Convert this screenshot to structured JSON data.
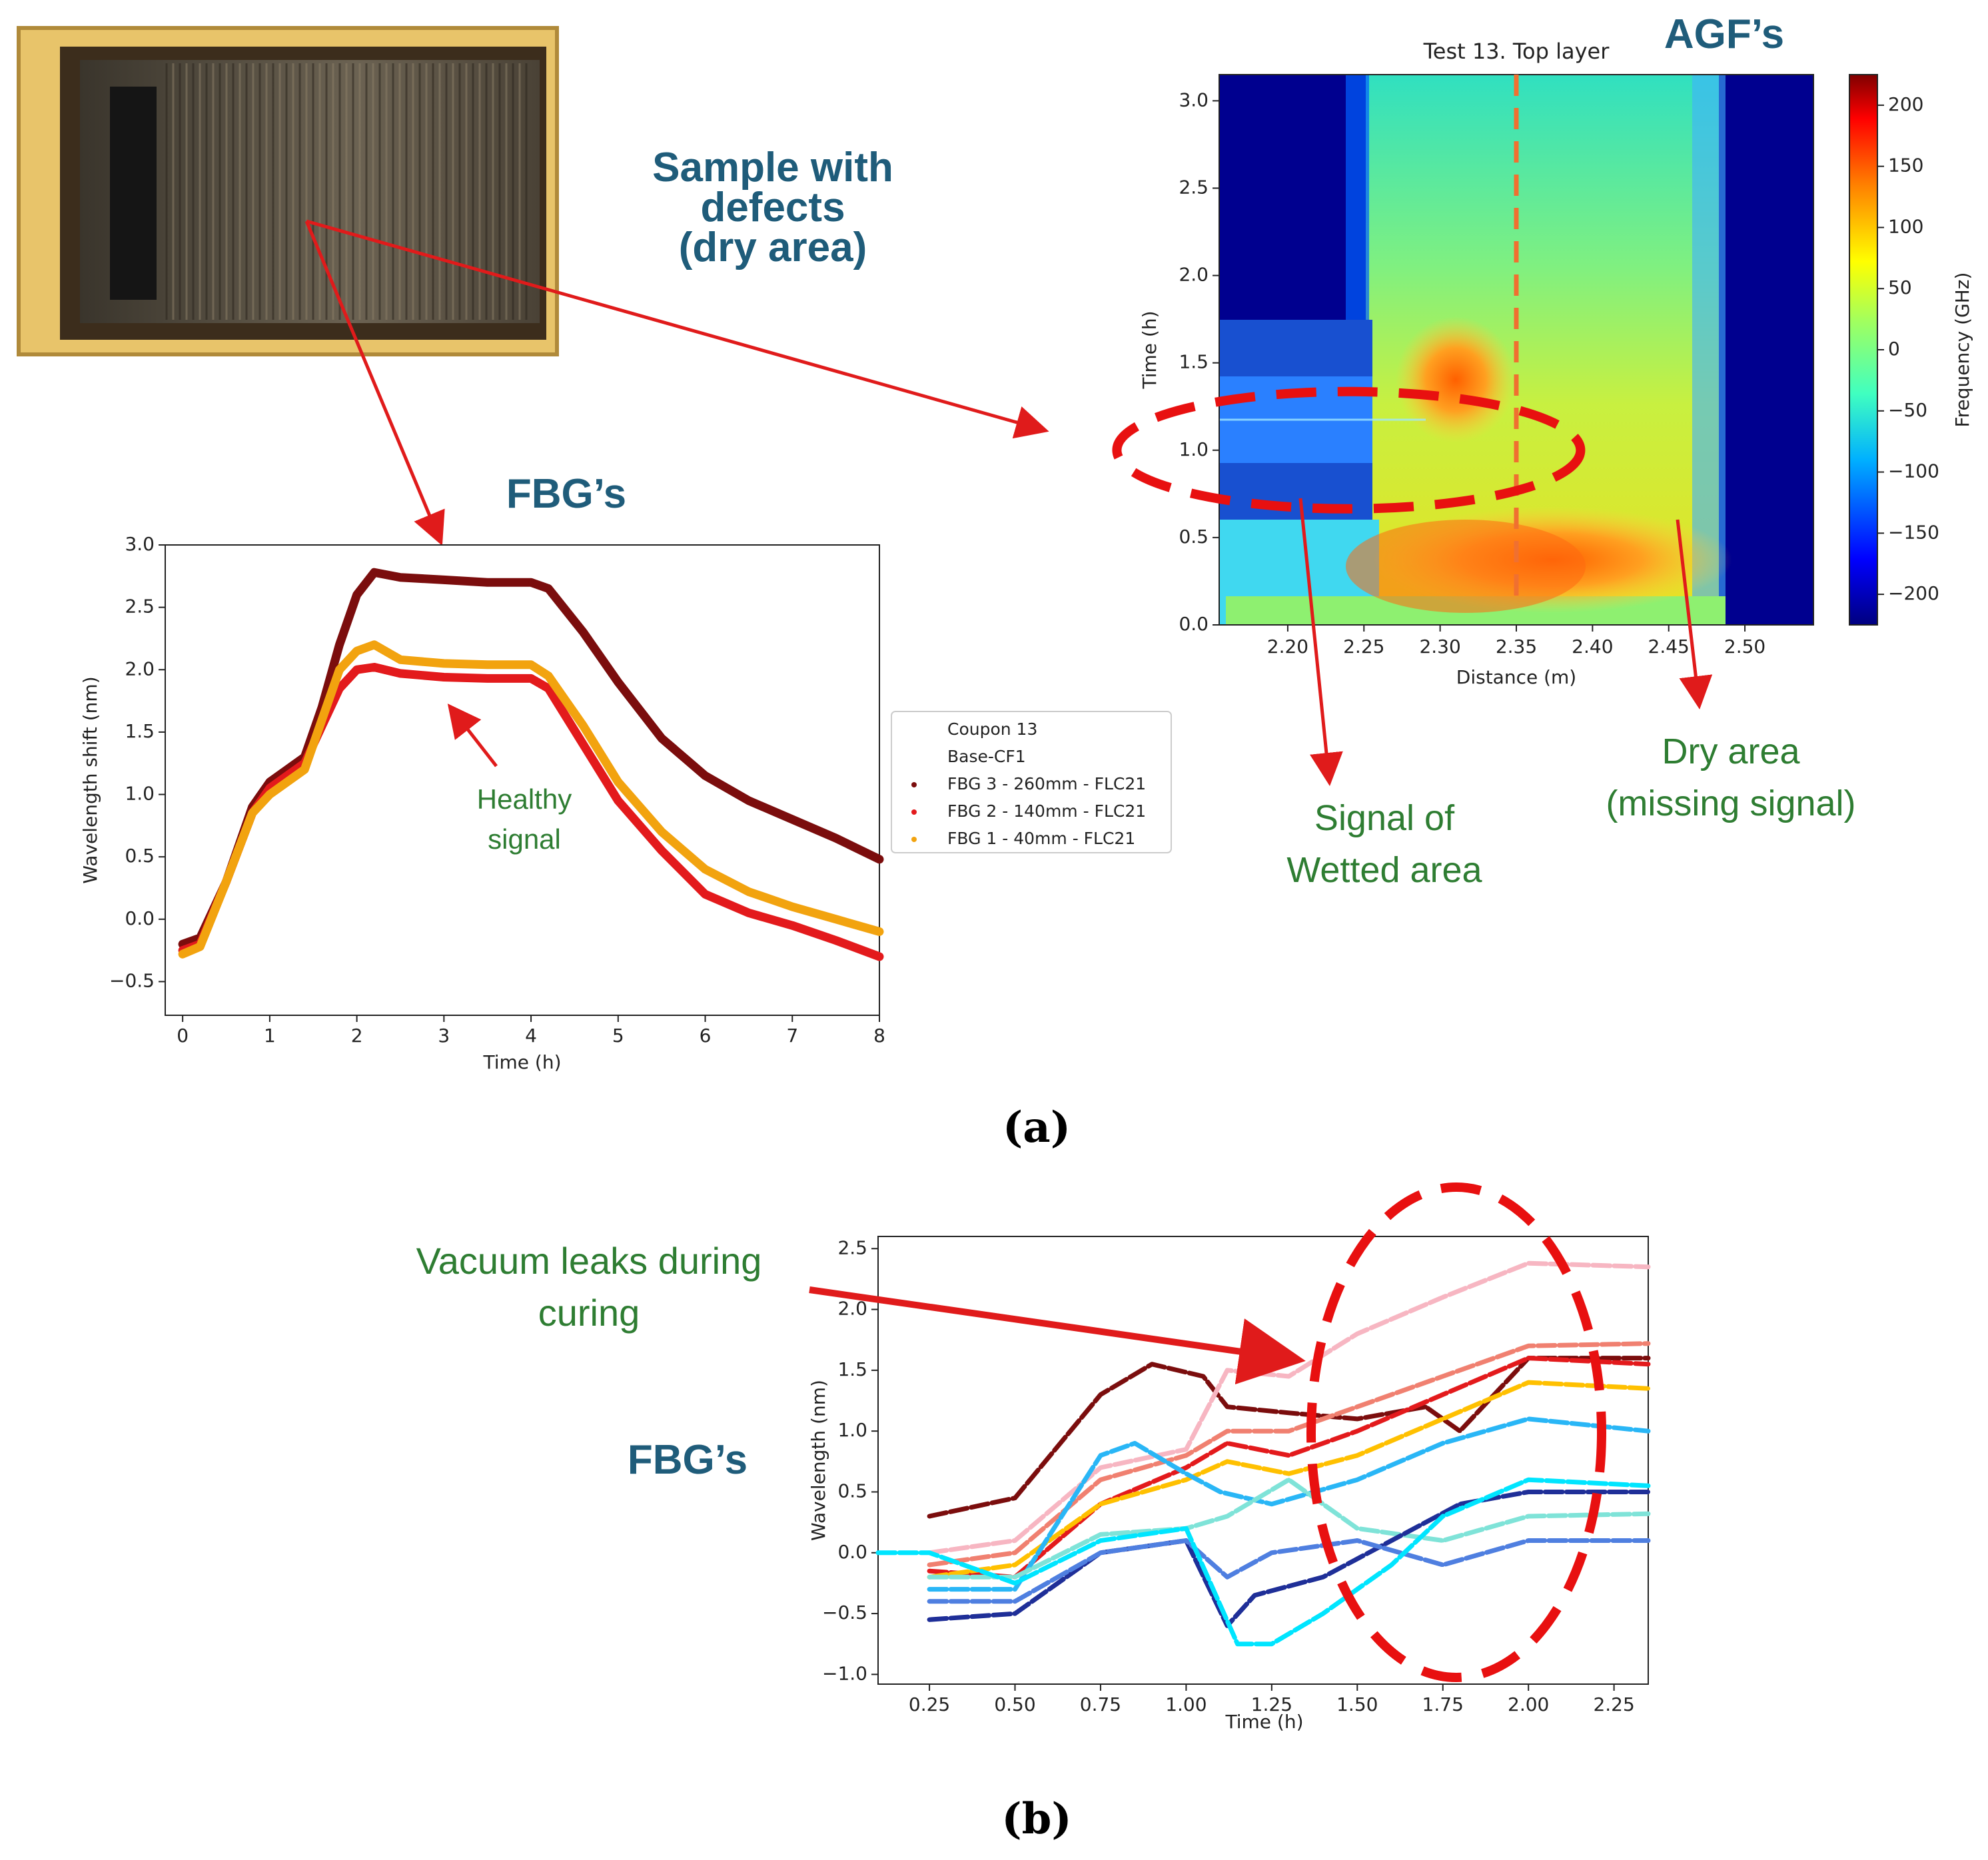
{
  "annotations": {
    "sample_title": [
      "Sample with",
      "defects",
      "(dry area)"
    ],
    "agf_title": "AGF’s",
    "fbg_title_a": "FBG’s",
    "fbg_title_b": "FBG’s",
    "healthy": [
      "Healthy",
      "signal"
    ],
    "wetted": [
      "Signal of",
      "Wetted area"
    ],
    "dry": [
      "Dry area",
      "(missing signal)"
    ],
    "vacuum": [
      "Vacuum leaks during",
      "curing"
    ],
    "caption_a": "(a)",
    "caption_b": "(b)",
    "photo_description_icon": "composite-sample-photo-icon"
  },
  "colors": {
    "title_blue": "#1f5c7a",
    "annot_green": "#2e7d32",
    "arrow_red": "#e01b1b",
    "fbg3": "#7b0d0d",
    "fbg2": "#e31a1c",
    "fbg1": "#f2a30f"
  },
  "chart_data": [
    {
      "id": "fbg_a",
      "type": "scatter",
      "title": "",
      "xlabel": "Time (h)",
      "ylabel": "Wavelength shift (nm)",
      "xlim": [
        -0.2,
        8
      ],
      "ylim": [
        -0.77,
        3.0
      ],
      "xticks": [
        0,
        1,
        2,
        3,
        4,
        5,
        6,
        7,
        8
      ],
      "yticks": [
        -0.5,
        0.0,
        0.5,
        1.0,
        1.5,
        2.0,
        2.5,
        3.0
      ],
      "xtick_labels": [
        "0",
        "1",
        "2",
        "3",
        "4",
        "5",
        "6",
        "7",
        "8"
      ],
      "ytick_labels": [
        "−0.5",
        "0.0",
        "0.5",
        "1.0",
        "1.5",
        "2.0",
        "2.5",
        "3.0"
      ],
      "legend_title": [
        "Coupon 13",
        "Base-CF1"
      ],
      "legend_position": "right",
      "series": [
        {
          "name": "FBG 3 - 260mm - FLC21",
          "color": "#7b0d0d",
          "x": [
            0,
            0.2,
            0.5,
            0.8,
            1.0,
            1.2,
            1.4,
            1.6,
            1.8,
            2.0,
            2.2,
            2.5,
            3.0,
            3.5,
            4.0,
            4.2,
            4.6,
            5.0,
            5.5,
            6.0,
            6.5,
            7.0,
            7.5,
            8.0
          ],
          "values": [
            -0.2,
            -0.15,
            0.3,
            0.9,
            1.1,
            1.2,
            1.3,
            1.7,
            2.2,
            2.6,
            2.78,
            2.74,
            2.72,
            2.7,
            2.7,
            2.65,
            2.3,
            1.9,
            1.45,
            1.15,
            0.95,
            0.8,
            0.65,
            0.48
          ]
        },
        {
          "name": "FBG 2 - 140mm - FLC21",
          "color": "#e31a1c",
          "x": [
            0,
            0.2,
            0.5,
            0.8,
            1.0,
            1.2,
            1.4,
            1.6,
            1.8,
            2.0,
            2.2,
            2.5,
            3.0,
            3.5,
            4.0,
            4.2,
            4.6,
            5.0,
            5.5,
            6.0,
            6.5,
            7.0,
            7.5,
            8.0
          ],
          "values": [
            -0.25,
            -0.2,
            0.3,
            0.85,
            1.05,
            1.15,
            1.25,
            1.55,
            1.85,
            2.0,
            2.02,
            1.97,
            1.94,
            1.93,
            1.93,
            1.85,
            1.4,
            0.95,
            0.55,
            0.2,
            0.05,
            -0.05,
            -0.17,
            -0.3
          ]
        },
        {
          "name": "FBG 1 - 40mm - FLC21",
          "color": "#f2a30f",
          "x": [
            0,
            0.2,
            0.5,
            0.8,
            1.0,
            1.2,
            1.4,
            1.6,
            1.8,
            2.0,
            2.2,
            2.5,
            3.0,
            3.5,
            4.0,
            4.2,
            4.6,
            5.0,
            5.5,
            6.0,
            6.5,
            7.0,
            7.5,
            8.0
          ],
          "values": [
            -0.28,
            -0.22,
            0.3,
            0.85,
            1.0,
            1.1,
            1.2,
            1.6,
            2.0,
            2.15,
            2.2,
            2.08,
            2.05,
            2.04,
            2.04,
            1.95,
            1.55,
            1.1,
            0.7,
            0.4,
            0.22,
            0.1,
            0.0,
            -0.1
          ]
        }
      ]
    },
    {
      "id": "agf_heatmap",
      "type": "heatmap",
      "title": "Test 13. Top layer",
      "xlabel": "Distance (m)",
      "ylabel": "Time (h)",
      "colorbar_label": "Frequency (GHz)",
      "xlim": [
        2.155,
        2.545
      ],
      "ylim": [
        0,
        3.15
      ],
      "xticks": [
        2.2,
        2.25,
        2.3,
        2.35,
        2.4,
        2.45,
        2.5
      ],
      "yticks": [
        0.0,
        0.5,
        1.0,
        1.5,
        2.0,
        2.5,
        3.0
      ],
      "xtick_labels": [
        "2.20",
        "2.25",
        "2.30",
        "2.35",
        "2.40",
        "2.45",
        "2.50"
      ],
      "ytick_labels": [
        "0.0",
        "0.5",
        "1.0",
        "1.5",
        "2.0",
        "2.5",
        "3.0"
      ],
      "clim": [
        -225,
        225
      ],
      "cticks": [
        200,
        150,
        100,
        50,
        0,
        -50,
        -100,
        -150,
        -200
      ],
      "ctick_labels": [
        "200",
        "150",
        "100",
        "50",
        "0",
        "−50",
        "−100",
        "−150",
        "−200"
      ],
      "marker_line_x": 2.35,
      "highlight_ellipse": {
        "x": 2.24,
        "y": 1.0
      },
      "regions": [
        {
          "name": "dark edges",
          "value": -210
        },
        {
          "name": "wetted area band",
          "value": -130
        },
        {
          "name": "central plateau",
          "value": 40
        },
        {
          "name": "wet peak near 2.30 m",
          "value": 150
        },
        {
          "name": "bottom hot band",
          "value": 170
        }
      ]
    },
    {
      "id": "fbg_b",
      "type": "scatter",
      "title": "",
      "xlabel": "Time (h)",
      "ylabel": "Wavelength (nm)",
      "xlim": [
        0.1,
        2.35
      ],
      "ylim": [
        -1.08,
        2.6
      ],
      "xticks": [
        0.25,
        0.5,
        0.75,
        1.0,
        1.25,
        1.5,
        1.75,
        2.0,
        2.25
      ],
      "yticks": [
        -1.0,
        -0.5,
        0.0,
        0.5,
        1.0,
        1.5,
        2.0,
        2.5
      ],
      "xtick_labels": [
        "0.25",
        "0.50",
        "0.75",
        "1.00",
        "1.25",
        "1.50",
        "1.75",
        "2.00",
        "2.25"
      ],
      "ytick_labels": [
        "−1.0",
        "−0.5",
        "0.0",
        "0.5",
        "1.0",
        "1.5",
        "2.0",
        "2.5"
      ],
      "series": [
        {
          "name": "s1",
          "color": "#7b0d0d",
          "x": [
            0.25,
            0.5,
            0.75,
            0.9,
            1.05,
            1.12,
            1.3,
            1.5,
            1.7,
            1.8,
            2.0,
            2.35
          ],
          "values": [
            0.3,
            0.45,
            1.3,
            1.55,
            1.45,
            1.2,
            1.15,
            1.1,
            1.2,
            1.0,
            1.6,
            1.6
          ]
        },
        {
          "name": "s2",
          "color": "#f7b6c2",
          "x": [
            0.25,
            0.5,
            0.75,
            1.0,
            1.12,
            1.3,
            1.5,
            1.75,
            2.0,
            2.35
          ],
          "values": [
            0.0,
            0.1,
            0.7,
            0.85,
            1.5,
            1.45,
            1.8,
            2.1,
            2.38,
            2.35
          ]
        },
        {
          "name": "s3",
          "color": "#f08070",
          "x": [
            0.25,
            0.5,
            0.75,
            1.0,
            1.12,
            1.3,
            1.5,
            1.75,
            2.0,
            2.35
          ],
          "values": [
            -0.1,
            0.0,
            0.6,
            0.8,
            1.0,
            1.0,
            1.2,
            1.45,
            1.7,
            1.72
          ]
        },
        {
          "name": "s4",
          "color": "#e31a1c",
          "x": [
            0.25,
            0.5,
            0.75,
            1.0,
            1.12,
            1.3,
            1.5,
            1.75,
            2.0,
            2.35
          ],
          "values": [
            -0.15,
            -0.2,
            0.4,
            0.7,
            0.9,
            0.8,
            1.0,
            1.3,
            1.6,
            1.55
          ]
        },
        {
          "name": "s5",
          "color": "#ffc000",
          "x": [
            0.25,
            0.5,
            0.75,
            1.0,
            1.12,
            1.3,
            1.5,
            1.75,
            2.0,
            2.35
          ],
          "values": [
            -0.2,
            -0.1,
            0.4,
            0.6,
            0.75,
            0.65,
            0.8,
            1.1,
            1.4,
            1.35
          ]
        },
        {
          "name": "s6",
          "color": "#29b6f6",
          "x": [
            0.25,
            0.5,
            0.75,
            0.85,
            1.0,
            1.1,
            1.25,
            1.5,
            1.75,
            2.0,
            2.35
          ],
          "values": [
            -0.3,
            -0.3,
            0.8,
            0.9,
            0.65,
            0.5,
            0.4,
            0.6,
            0.9,
            1.1,
            1.0
          ]
        },
        {
          "name": "s7",
          "color": "#7fe3d8",
          "x": [
            0.25,
            0.5,
            0.75,
            1.0,
            1.12,
            1.3,
            1.5,
            1.75,
            2.0,
            2.35
          ],
          "values": [
            -0.2,
            -0.2,
            0.15,
            0.2,
            0.3,
            0.6,
            0.2,
            0.1,
            0.3,
            0.32
          ]
        },
        {
          "name": "s8",
          "color": "#1f2f98",
          "x": [
            0.25,
            0.5,
            0.75,
            1.0,
            1.12,
            1.2,
            1.4,
            1.6,
            1.8,
            2.0,
            2.35
          ],
          "values": [
            -0.55,
            -0.5,
            0.0,
            0.1,
            -0.6,
            -0.35,
            -0.2,
            0.1,
            0.4,
            0.5,
            0.5
          ]
        },
        {
          "name": "s9",
          "color": "#4f7fe0",
          "x": [
            0.25,
            0.5,
            0.75,
            1.0,
            1.12,
            1.25,
            1.5,
            1.75,
            2.0,
            2.35
          ],
          "values": [
            -0.4,
            -0.4,
            0.0,
            0.1,
            -0.2,
            0.0,
            0.1,
            -0.1,
            0.1,
            0.1
          ]
        },
        {
          "name": "s10",
          "color": "#00e5ff",
          "x": [
            0.1,
            0.25,
            0.5,
            0.75,
            1.0,
            1.15,
            1.25,
            1.4,
            1.6,
            1.75,
            2.0,
            2.35
          ],
          "values": [
            0.0,
            0.0,
            -0.25,
            0.1,
            0.2,
            -0.75,
            -0.75,
            -0.5,
            -0.1,
            0.3,
            0.6,
            0.55
          ]
        }
      ]
    }
  ]
}
